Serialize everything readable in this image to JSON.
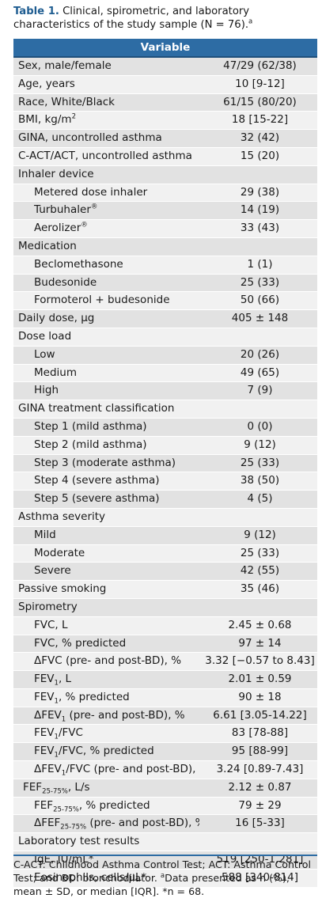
{
  "caption": {
    "label": "Table 1.",
    "text": " Clinical, spirometric, and laboratory characteristics of the study sample (N = 76).",
    "mark": "a"
  },
  "header": "Variable",
  "rows": [
    {
      "label": "Sex, male/female",
      "value": "47/29 (62/38)"
    },
    {
      "label": "Age, years",
      "value": "10 [9-12]"
    },
    {
      "label": "Race, White/Black",
      "value": "61/15 (80/20)"
    },
    {
      "label": "BMI, kg/m",
      "sup": "2",
      "value": "18 [15-22]"
    },
    {
      "label": "GINA, uncontrolled asthma",
      "value": "32 (42)"
    },
    {
      "label": "C-ACT/ACT, uncontrolled asthma",
      "value": "15 (20)"
    },
    {
      "label": "Inhaler device",
      "group": true
    },
    {
      "label": "Metered dose inhaler",
      "indent": true,
      "value": "29 (38)"
    },
    {
      "label": "Turbuhaler",
      "sup": "®",
      "indent": true,
      "value": "14 (19)"
    },
    {
      "label": "Aerolizer",
      "sup": "®",
      "indent": true,
      "value": "33 (43)"
    },
    {
      "label": "Medication",
      "group": true
    },
    {
      "label": "Beclomethasone",
      "indent": true,
      "value": "1 (1)"
    },
    {
      "label": "Budesonide",
      "indent": true,
      "value": "25 (33)"
    },
    {
      "label": "Formoterol + budesonide",
      "indent": true,
      "value": "50 (66)"
    },
    {
      "label": "Daily dose, µg",
      "value": "405 ± 148"
    },
    {
      "label": "Dose load",
      "group": true
    },
    {
      "label": "Low",
      "indent": true,
      "value": "20 (26)"
    },
    {
      "label": "Medium",
      "indent": true,
      "value": "49 (65)"
    },
    {
      "label": "High",
      "indent": true,
      "value": "7 (9)"
    },
    {
      "label": "GINA treatment classification",
      "group": true
    },
    {
      "label": "Step 1 (mild asthma)",
      "indent": true,
      "value": "0 (0)"
    },
    {
      "label": "Step 2 (mild asthma)",
      "indent": true,
      "value": "9 (12)"
    },
    {
      "label": "Step 3 (moderate asthma)",
      "indent": true,
      "value": "25 (33)"
    },
    {
      "label": "Step 4 (severe asthma)",
      "indent": true,
      "value": "38 (50)"
    },
    {
      "label": "Step 5 (severe asthma)",
      "indent": true,
      "value": "4 (5)"
    },
    {
      "label": "Asthma severity",
      "group": true
    },
    {
      "label": "Mild",
      "indent": true,
      "value": "9 (12)"
    },
    {
      "label": "Moderate",
      "indent": true,
      "value": "25 (33)"
    },
    {
      "label": "Severe",
      "indent": true,
      "value": "42 (55)"
    },
    {
      "label": "Passive smoking",
      "value": "35 (46)"
    },
    {
      "label": "Spirometry",
      "group": true
    },
    {
      "label": "FVC, L",
      "indent": true,
      "value": "2.45 ± 0.68"
    },
    {
      "label": "FVC, % predicted",
      "indent": true,
      "value": "97 ± 14"
    },
    {
      "label": "ΔFVC (pre- and post-BD), %",
      "indent": true,
      "value": "3.32 [−0.57 to 8.43]"
    },
    {
      "label": "FEV",
      "sub": "1",
      "rest": ", L",
      "indent": true,
      "value": "2.01 ± 0.59"
    },
    {
      "label": "FEV",
      "sub": "1",
      "rest": ", % predicted",
      "indent": true,
      "value": "90 ± 18"
    },
    {
      "label": "ΔFEV",
      "sub": "1",
      "rest": " (pre- and post-BD), %",
      "indent": true,
      "value": "6.61 [3.05-14.22]"
    },
    {
      "label": "FEV",
      "sub": "1",
      "rest": "/FVC",
      "indent": true,
      "value": "83 [78-88]"
    },
    {
      "label": "FEV",
      "sub": "1",
      "rest": "/FVC, % predicted",
      "indent": true,
      "value": "95 [88-99]"
    },
    {
      "label": "ΔFEV",
      "sub": "1",
      "rest": "/FVC (pre- and post-BD), %",
      "indent": true,
      "value": "3.24 [0.89-7.43]"
    },
    {
      "label": "FEF",
      "sub": "25-75%",
      "rest": ", L/s",
      "indent2": true,
      "value": "2.12 ± 0.87"
    },
    {
      "label": "FEF",
      "sub": "25-75%",
      "rest": ", % predicted",
      "indent": true,
      "value": "79 ± 29"
    },
    {
      "label": "ΔFEF",
      "sub": "25-75%",
      "rest": " (pre- and post-BD), %",
      "indent": true,
      "value": "16 [5-33]"
    },
    {
      "label": "Laboratory test results",
      "group": true
    },
    {
      "label": "IgE, IU/mL*",
      "indent": true,
      "value": "519 [250-1,281]"
    },
    {
      "label": "Eosinophils, cells/µL*",
      "indent": true,
      "value": "588 [340-814]"
    }
  ],
  "footnote": {
    "text1": "C-ACT: Childhood Asthma Control Test; ACT: Asthma Control Test; and BD: bronchodilator. ",
    "mark": "a",
    "text2": "Data presented as n (%), mean ± SD, or median [IQR]. *n = 68."
  }
}
